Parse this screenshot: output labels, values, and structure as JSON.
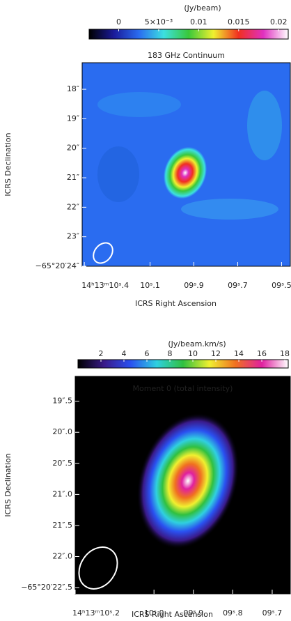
{
  "chart_data": [
    {
      "type": "image",
      "title": "183 GHz Continuum",
      "colorbar_label": "(Jy/beam)",
      "clim": [
        -0.0037,
        0.0212
      ],
      "cticks": [
        0,
        {
          "value": 0.005,
          "label": "5×10⁻³"
        },
        0.01,
        0.015,
        0.02
      ],
      "colormap": [
        "#000000",
        "#1a1a9a",
        "#2a6cf0",
        "#3ce0e0",
        "#3ac83a",
        "#f0f030",
        "#f03020",
        "#e030c0",
        "#ffffff"
      ],
      "xlabel": "ICRS Right Ascension",
      "ylabel": "ICRS Declination",
      "xlim": [
        10.41,
        9.46
      ],
      "ylim": [
        17.1,
        24
      ],
      "xticks": [
        {
          "value": 10.4,
          "label": "14ʰ13ᵐ10ˢ.4"
        },
        {
          "value": 10.1,
          "label": "10ˢ.1"
        },
        {
          "value": 9.9,
          "label": "09ˢ.9"
        },
        {
          "value": 9.7,
          "label": "09ˢ.7"
        },
        {
          "value": 9.5,
          "label": "09ˢ.5"
        }
      ],
      "yticks": [
        {
          "value": 18,
          "label": "18″"
        },
        {
          "value": 19,
          "label": "19″"
        },
        {
          "value": 20,
          "label": "20″"
        },
        {
          "value": 21,
          "label": "21″"
        },
        {
          "value": 22,
          "label": "22″"
        },
        {
          "value": 23,
          "label": "23″"
        },
        {
          "value": 24,
          "label": "−65°20′24″"
        }
      ]
    },
    {
      "type": "image",
      "title": "Moment 0 (total intensity)",
      "colorbar_label": "(Jy/beam.km/s)",
      "clim": [
        0,
        18.3
      ],
      "cticks": [
        2,
        4,
        6,
        8,
        10,
        12,
        14,
        16,
        18
      ],
      "colormap": [
        "#000000",
        "#3a1a8a",
        "#2a50f0",
        "#30d0e0",
        "#30c040",
        "#f0f030",
        "#f07020",
        "#e020a0",
        "#ffffff"
      ],
      "xlabel": "ICRS Right Ascension",
      "ylabel": "ICRS Declination",
      "xlim": [
        10.2,
        9.654
      ],
      "ylim": [
        19.1,
        22.6
      ],
      "xticks": [
        {
          "value": 10.2,
          "label": "14ʰ13ᵐ10ˢ.2"
        },
        {
          "value": 10.0,
          "label": "10ˢ.0"
        },
        {
          "value": 9.9,
          "label": "09ˢ.9"
        },
        {
          "value": 9.8,
          "label": "09ˢ.8"
        },
        {
          "value": 9.7,
          "label": "09ˢ.7"
        }
      ],
      "yticks": [
        {
          "value": 19.5,
          "label": "19″.5"
        },
        {
          "value": 20.0,
          "label": "20″.0"
        },
        {
          "value": 20.5,
          "label": "20″.5"
        },
        {
          "value": 21.0,
          "label": "21″.0"
        },
        {
          "value": 21.5,
          "label": "21″.5"
        },
        {
          "value": 22.0,
          "label": "22″.0"
        },
        {
          "value": 22.5,
          "label": "−65°20′22″.5"
        }
      ]
    }
  ]
}
